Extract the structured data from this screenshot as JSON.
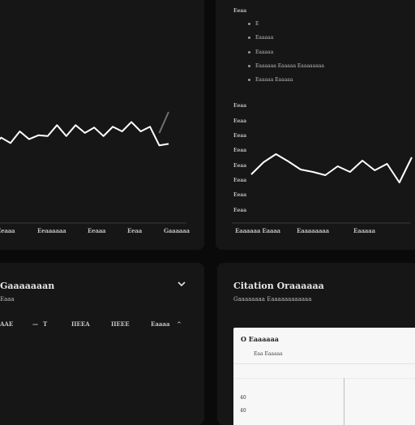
{
  "panel_left_chart": {
    "x_labels": [
      "Eeaaa",
      "Eeaaaaaa",
      "Eeaaa",
      "Eeaa",
      "Gaaaaaa"
    ],
    "series": [
      {
        "values": [
          30,
          42,
          35,
          50,
          40,
          45,
          44,
          58,
          44,
          58,
          48,
          55,
          44,
          56,
          50,
          62,
          50,
          56,
          32,
          34
        ]
      },
      {
        "values": [
          null,
          null,
          null,
          null,
          null,
          null,
          null,
          null,
          null,
          null,
          null,
          null,
          null,
          null,
          null,
          null,
          null,
          null,
          48,
          75
        ]
      }
    ],
    "colors": {
      "line": "#ffffff",
      "faded": "#6f6f6f"
    }
  },
  "panel_right_chart": {
    "menu_title": "Eeaa",
    "menu_items": [
      "E",
      "Eaaaaa",
      "Eaaaaa",
      "Eaaaaaa Eaaaaa Eaaaaaaaa",
      "Eaaaaa Eaaaaa"
    ],
    "y_ticks": [
      "Eeaa",
      "Eeaa",
      "Eeaa",
      "Eeaa",
      "Eeaa",
      "Eeaa",
      "Eeaa",
      "Eeaa"
    ],
    "x_labels": [
      "Eaaaaaa Eaaaa",
      "Eaaaaaaaa",
      "Eaaaaa"
    ],
    "values": [
      35,
      50,
      60,
      51,
      41,
      38,
      34,
      45,
      38,
      52,
      40,
      48,
      25,
      56
    ]
  },
  "panel_expand": {
    "title": "Gaaaaaaan",
    "subtitle": "Eaaa",
    "row": [
      "AAE",
      "—",
      "T",
      "IIEEA",
      "IIEEE",
      "Eaaaa",
      "^"
    ],
    "icon": "chevron-down-icon"
  },
  "panel_citation": {
    "title": "Citation Oraaaaaa",
    "subtitle": "Gaaaaaaaa Eaaaaaaaaaaaa",
    "card": {
      "title": "O Eaaaaaa",
      "legend": "Eaa  Eaaaaa",
      "y_labels": [
        "40",
        "40"
      ]
    }
  }
}
